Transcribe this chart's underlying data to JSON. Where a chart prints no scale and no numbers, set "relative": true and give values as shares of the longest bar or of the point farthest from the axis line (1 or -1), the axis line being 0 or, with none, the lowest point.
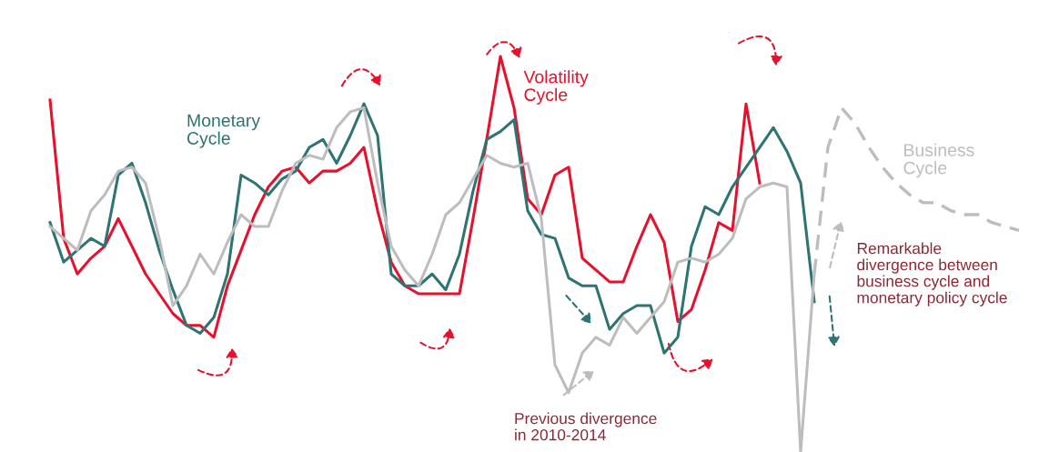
{
  "chart_data": {
    "type": "line",
    "relative": true,
    "categories": [
      null,
      null,
      null,
      null,
      null,
      null,
      null,
      null,
      null,
      null,
      null,
      null,
      null,
      null,
      null,
      null,
      null,
      null,
      null,
      null,
      null,
      null,
      null,
      null,
      null,
      null,
      null,
      null,
      null,
      null,
      null,
      null,
      null,
      null,
      null,
      null,
      null,
      null,
      null,
      null,
      null,
      null,
      null,
      null,
      null,
      null,
      null,
      null,
      null,
      null,
      null,
      null,
      null,
      null,
      null,
      null,
      null,
      null,
      null,
      null,
      null,
      null,
      null,
      null,
      null,
      null,
      null,
      null,
      null,
      null,
      null,
      null
    ],
    "series": [
      {
        "name": "Volatility Cycle",
        "color": "#e8112d",
        "values": [
          0.89,
          0.54,
          0.45,
          0.49,
          0.52,
          0.59,
          0.52,
          0.45,
          0.4,
          0.35,
          0.32,
          0.32,
          0.29,
          0.42,
          0.51,
          0.6,
          0.67,
          0.71,
          0.72,
          0.68,
          0.71,
          0.71,
          0.73,
          0.77,
          0.61,
          0.48,
          0.42,
          0.4,
          0.4,
          0.4,
          0.4,
          0.59,
          0.79,
          1.0,
          0.87,
          0.64,
          0.6,
          0.7,
          0.72,
          0.49,
          0.46,
          0.43,
          0.43,
          0.52,
          0.6,
          0.53,
          0.33,
          0.36,
          0.46,
          0.58,
          0.56,
          0.88,
          0.68,
          null,
          null,
          null,
          null,
          null,
          null,
          null,
          null,
          null,
          null,
          null,
          null,
          null,
          null,
          null,
          null,
          null,
          null,
          null
        ]
      },
      {
        "name": "Monetary Cycle",
        "color": "#2e7473",
        "values": [
          0.58,
          0.48,
          0.51,
          0.54,
          0.52,
          0.7,
          0.73,
          0.63,
          0.51,
          0.41,
          0.32,
          0.3,
          0.34,
          0.45,
          0.7,
          0.68,
          0.65,
          0.69,
          0.71,
          0.77,
          0.79,
          0.73,
          0.8,
          0.88,
          0.8,
          0.45,
          0.42,
          0.42,
          0.45,
          0.41,
          0.5,
          0.66,
          0.79,
          0.81,
          0.84,
          0.61,
          0.55,
          0.54,
          0.44,
          0.42,
          0.42,
          0.31,
          0.35,
          0.37,
          0.37,
          0.25,
          0.29,
          0.52,
          0.62,
          0.6,
          0.67,
          0.72,
          0.77,
          0.82,
          0.76,
          0.68,
          0.38,
          null,
          null,
          null,
          null,
          null,
          null,
          null,
          null,
          null,
          null,
          null,
          null,
          null,
          null,
          null
        ]
      },
      {
        "color": "#bdbdbd",
        "values": [
          0.57,
          0.54,
          0.51,
          0.61,
          0.65,
          0.71,
          0.72,
          0.68,
          0.54,
          0.37,
          0.42,
          0.5,
          0.45,
          0.53,
          0.6,
          0.57,
          0.57,
          0.66,
          0.73,
          0.75,
          0.74,
          0.82,
          0.86,
          0.87,
          0.68,
          0.52,
          0.46,
          0.42,
          0.5,
          0.6,
          0.63,
          0.69,
          0.75,
          0.73,
          0.72,
          0.73,
          0.59,
          0.22,
          0.15,
          0.25,
          0.29,
          0.27,
          0.34,
          0.3,
          0.34,
          0.38,
          0.48,
          0.49,
          0.48,
          0.5,
          0.54,
          0.64,
          0.67,
          0.68,
          0.67,
          0.0,
          0.45,
          null,
          null,
          null,
          null,
          null,
          null,
          null,
          null,
          null,
          null,
          null,
          null,
          null,
          null,
          null
        ]
      },
      {
        "name": "Business Cycle",
        "color": "#bdbdbd",
        "line_style": "dashed",
        "values": [
          null,
          null,
          null,
          null,
          null,
          null,
          null,
          null,
          null,
          null,
          null,
          null,
          null,
          null,
          null,
          null,
          null,
          null,
          null,
          null,
          null,
          null,
          null,
          null,
          null,
          null,
          null,
          null,
          null,
          null,
          null,
          null,
          null,
          null,
          null,
          null,
          null,
          null,
          null,
          null,
          null,
          null,
          null,
          null,
          null,
          null,
          null,
          null,
          null,
          null,
          null,
          null,
          null,
          null,
          null,
          null,
          0.45,
          0.77,
          0.87,
          0.83,
          0.77,
          0.72,
          0.68,
          0.65,
          0.63,
          0.63,
          0.61,
          0.6,
          0.6,
          0.58,
          0.57,
          0.56
        ]
      }
    ],
    "annotations": [
      "Previous divergence\nin 2010-2014",
      "Remarkable\ndivergence between\nbusiness cycle and\nmonetary policy cycle"
    ]
  }
}
